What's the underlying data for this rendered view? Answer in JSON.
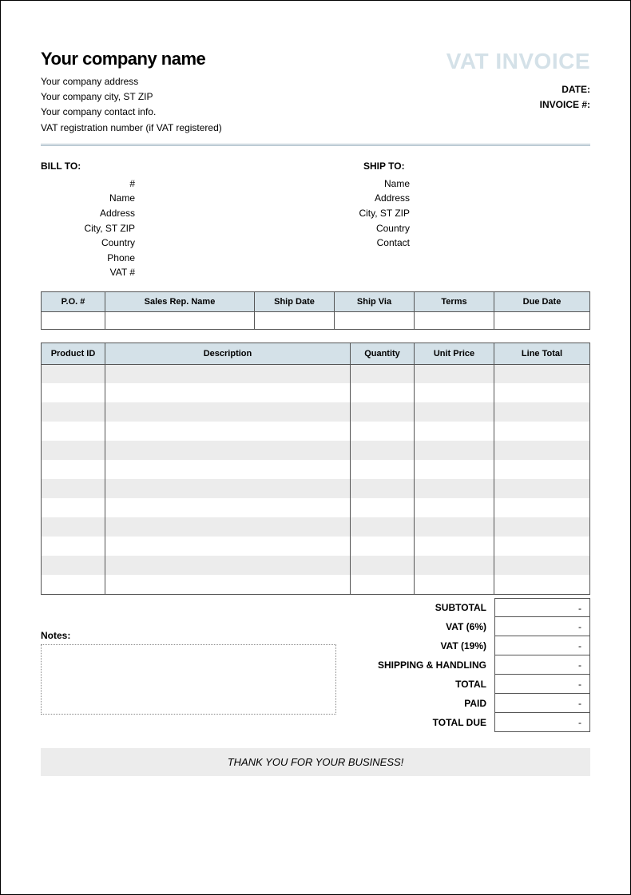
{
  "header": {
    "company_name": "Your company name",
    "vat_title": "VAT INVOICE",
    "company_lines": [
      "Your company address",
      "Your company city, ST ZIP",
      "Your company contact info.",
      "VAT registration number (if VAT registered)"
    ],
    "date_label": "DATE:",
    "invoice_no_label": "INVOICE #:"
  },
  "bill_to": {
    "heading": "BILL TO:",
    "fields": [
      "#",
      "Name",
      "Address",
      "City, ST ZIP",
      "Country",
      "Phone",
      "VAT #"
    ]
  },
  "ship_to": {
    "heading": "SHIP TO:",
    "fields": [
      "Name",
      "Address",
      "City, ST ZIP",
      "Country",
      "Contact"
    ]
  },
  "po_table": {
    "headers": [
      "P.O. #",
      "Sales Rep. Name",
      "Ship Date",
      "Ship Via",
      "Terms",
      "Due Date"
    ],
    "col_widths": [
      "80px",
      "auto",
      "100px",
      "100px",
      "100px",
      "120px"
    ]
  },
  "items_table": {
    "headers": [
      "Product ID",
      "Description",
      "Quantity",
      "Unit Price",
      "Line Total"
    ],
    "row_count": 12
  },
  "totals": {
    "rows": [
      {
        "label": "SUBTOTAL",
        "value": "-"
      },
      {
        "label": "VAT (6%)",
        "value": "-"
      },
      {
        "label": "VAT (19%)",
        "value": "-"
      },
      {
        "label": "SHIPPING & HANDLING",
        "value": "-"
      },
      {
        "label": "TOTAL",
        "value": "-"
      },
      {
        "label": "PAID",
        "value": "-"
      },
      {
        "label": "TOTAL DUE",
        "value": "-"
      }
    ]
  },
  "notes_label": "Notes:",
  "thank_you": "THANK YOU FOR YOUR BUSINESS!",
  "colors": {
    "header_bg": "#d4e1e8",
    "alt_row": "#ececec",
    "watermark_text": "#d4e1e8",
    "rule": "#a8bcc8",
    "border": "#555555"
  }
}
